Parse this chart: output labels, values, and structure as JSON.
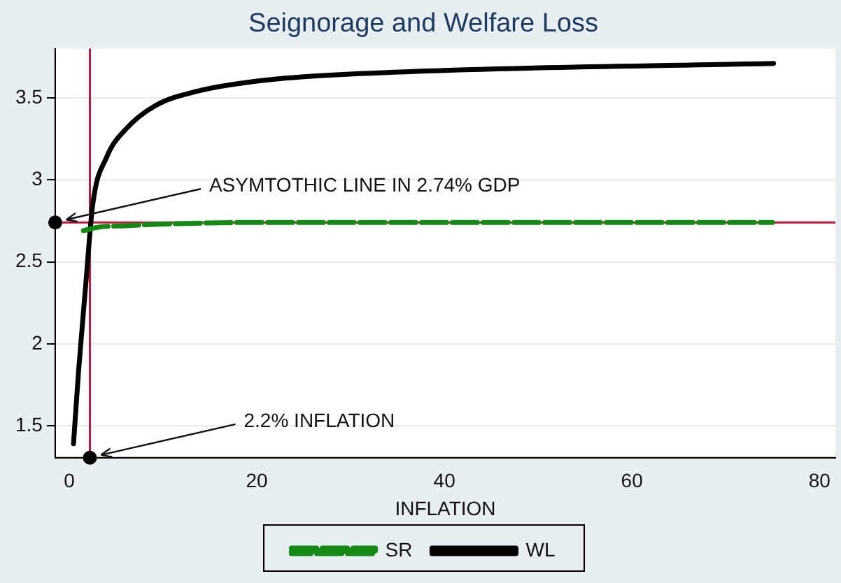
{
  "chart_data": {
    "type": "line",
    "title": "Seignorage and Welfare Loss",
    "xlabel": "INFLATION",
    "xlim": [
      -1.5,
      81.7
    ],
    "xticks": [
      0,
      20,
      40,
      60,
      80
    ],
    "ylim": [
      1.305,
      3.8
    ],
    "yticks": [
      1.5,
      2,
      2.5,
      3,
      3.5
    ],
    "grid": "y",
    "legend": "bottom",
    "marker": "none",
    "series": [
      {
        "name": "SR",
        "color": "#138a13",
        "line_style": "dashed",
        "x": [
          1.5,
          3,
          6,
          10,
          20,
          40,
          75
        ],
        "values": [
          2.69,
          2.71,
          2.72,
          2.73,
          2.74,
          2.74,
          2.74
        ]
      },
      {
        "name": "WL",
        "color": "#000000",
        "line_style": "solid",
        "x": [
          0.45,
          1.0,
          1.77,
          2.5,
          4.0,
          6.05,
          9.1,
          13.6,
          21.2,
          36.3,
          75.1
        ],
        "values": [
          1.39,
          1.84,
          2.37,
          2.85,
          3.14,
          3.31,
          3.45,
          3.54,
          3.61,
          3.66,
          3.71
        ]
      }
    ],
    "ref_lines": [
      {
        "axis": "x",
        "value": 2.2,
        "color": "#c0143c"
      },
      {
        "axis": "y",
        "value": 2.74,
        "color": "#c0143c"
      }
    ],
    "annotations": [
      {
        "text": "ASYMTOTHIC LINE IN 2.74% GDP",
        "x": -1.5,
        "y": 2.74
      },
      {
        "text": "2.2% INFLATION",
        "x": 2.2,
        "y": 1.305
      }
    ]
  }
}
